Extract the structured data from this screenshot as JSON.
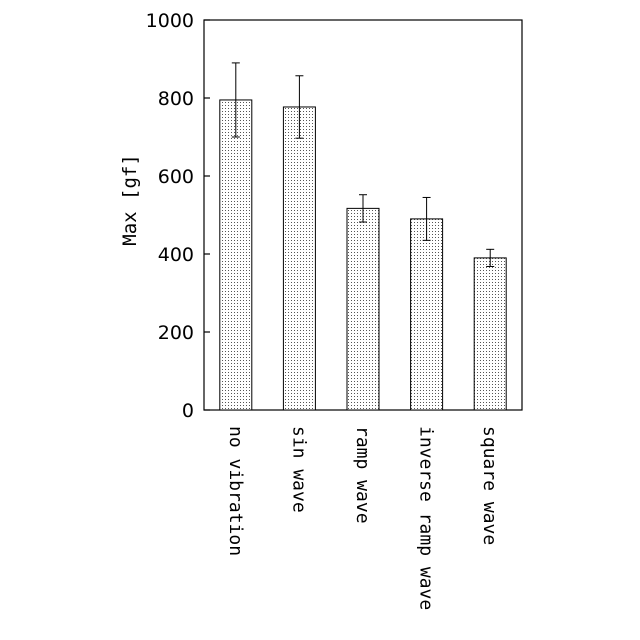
{
  "chart_data": {
    "type": "bar",
    "title": "",
    "xlabel": "",
    "ylabel": "Max [gf]",
    "categories": [
      "no vibration",
      "sin wave",
      "ramp wave",
      "inverse ramp wave",
      "square wave"
    ],
    "series": [
      {
        "values": [
          795,
          777,
          517,
          490,
          390
        ],
        "errors": [
          95,
          80,
          35,
          55,
          22
        ]
      }
    ],
    "ylim": [
      0,
      1000
    ],
    "yticks": [
      "0",
      "200",
      "400",
      "600",
      "800",
      "1000"
    ],
    "grid": false,
    "legend": "none",
    "bar_fill": "dotted-gray",
    "colors": {
      "bar_stroke": "#000000",
      "dot": "#555555",
      "axis": "#000000"
    }
  }
}
